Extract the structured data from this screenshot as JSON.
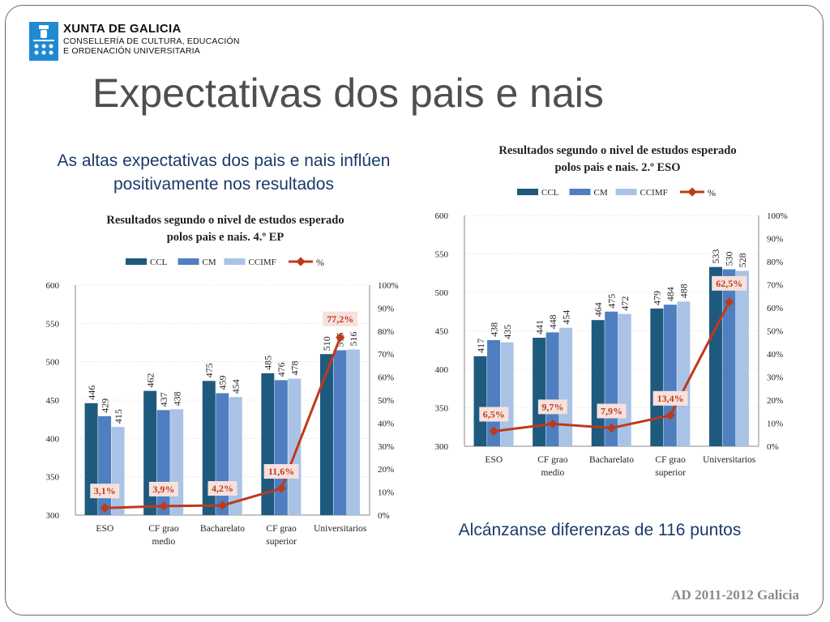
{
  "header": {
    "org_line1": "XUNTA DE GALICIA",
    "org_line2": "CONSELLERÍA DE CULTURA, EDUCACIÓN",
    "org_line3": "E ORDENACIÓN UNIVERSITARIA"
  },
  "page_title": "Expectativas dos pais e nais",
  "subtitle_left": "As altas expectativas dos pais e nais inflúen positivamente nos resultados",
  "subtitle_right": "Alcánzanse diferenzas de 116 puntos",
  "footer": "AD 2011-2012 Galicia",
  "colors": {
    "ccl": "#1e5a7e",
    "cm": "#4f7fc0",
    "ccimf": "#a9c3e6",
    "pct": "#c0391b",
    "pct_label_bg": "#f6e1dc",
    "accent_blue": "#1a3a6b"
  },
  "chart_data": [
    {
      "type": "bar",
      "title_line1": "Resultados segundo o nivel de estudos esperado",
      "title_line2": "polos pais e nais. 4.º EP",
      "categories": [
        "ESO",
        "CF grao medio",
        "Bacharelato",
        "CF grao superior",
        "Universitarios"
      ],
      "category_lines": [
        [
          "ESO"
        ],
        [
          "CF grao",
          "medio"
        ],
        [
          "Bacharelato"
        ],
        [
          "CF grao",
          "superior"
        ],
        [
          "Universitarios"
        ]
      ],
      "series": [
        {
          "name": "CCL",
          "values": [
            446,
            462,
            475,
            485,
            510
          ]
        },
        {
          "name": "CM",
          "values": [
            429,
            437,
            459,
            476,
            515
          ]
        },
        {
          "name": "CCIMF",
          "values": [
            415,
            438,
            454,
            478,
            516
          ]
        }
      ],
      "pct_series": {
        "name": "%",
        "values": [
          3.1,
          3.9,
          4.2,
          11.6,
          77.2
        ],
        "labels": [
          "3,1%",
          "3,9%",
          "4,2%",
          "11,6%",
          "77,2%"
        ]
      },
      "ylim": [
        300,
        600
      ],
      "yticks": [
        "300",
        "350",
        "400",
        "450",
        "500",
        "550",
        "600"
      ],
      "y2lim": [
        0,
        100
      ],
      "y2ticks": [
        "0%",
        "10%",
        "20%",
        "30%",
        "40%",
        "50%",
        "60%",
        "70%",
        "80%",
        "90%",
        "100%"
      ],
      "legend": "top"
    },
    {
      "type": "bar",
      "title_line1": "Resultados segundo o nivel de estudos esperado",
      "title_line2": "polos pais e nais. 2.º ESO",
      "categories": [
        "ESO",
        "CF grao medio",
        "Bacharelato",
        "CF grao superior",
        "Universitarios"
      ],
      "category_lines": [
        [
          "ESO"
        ],
        [
          "CF grao",
          "medio"
        ],
        [
          "Bacharelato"
        ],
        [
          "CF grao",
          "superior"
        ],
        [
          "Universitarios"
        ]
      ],
      "series": [
        {
          "name": "CCL",
          "values": [
            417,
            441,
            464,
            479,
            533
          ]
        },
        {
          "name": "CM",
          "values": [
            438,
            448,
            475,
            484,
            530
          ]
        },
        {
          "name": "CCIMF",
          "values": [
            435,
            454,
            472,
            488,
            528
          ]
        }
      ],
      "pct_series": {
        "name": "%",
        "values": [
          6.5,
          9.7,
          7.9,
          13.4,
          62.5
        ],
        "labels": [
          "6,5%",
          "9,7%",
          "7,9%",
          "13,4%",
          "62,5%"
        ]
      },
      "ylim": [
        300,
        600
      ],
      "yticks": [
        "300",
        "350",
        "400",
        "450",
        "500",
        "550",
        "600"
      ],
      "y2lim": [
        0,
        100
      ],
      "y2ticks": [
        "0%",
        "10%",
        "20%",
        "30%",
        "40%",
        "50%",
        "60%",
        "70%",
        "80%",
        "90%",
        "100%"
      ],
      "legend": "top"
    }
  ]
}
